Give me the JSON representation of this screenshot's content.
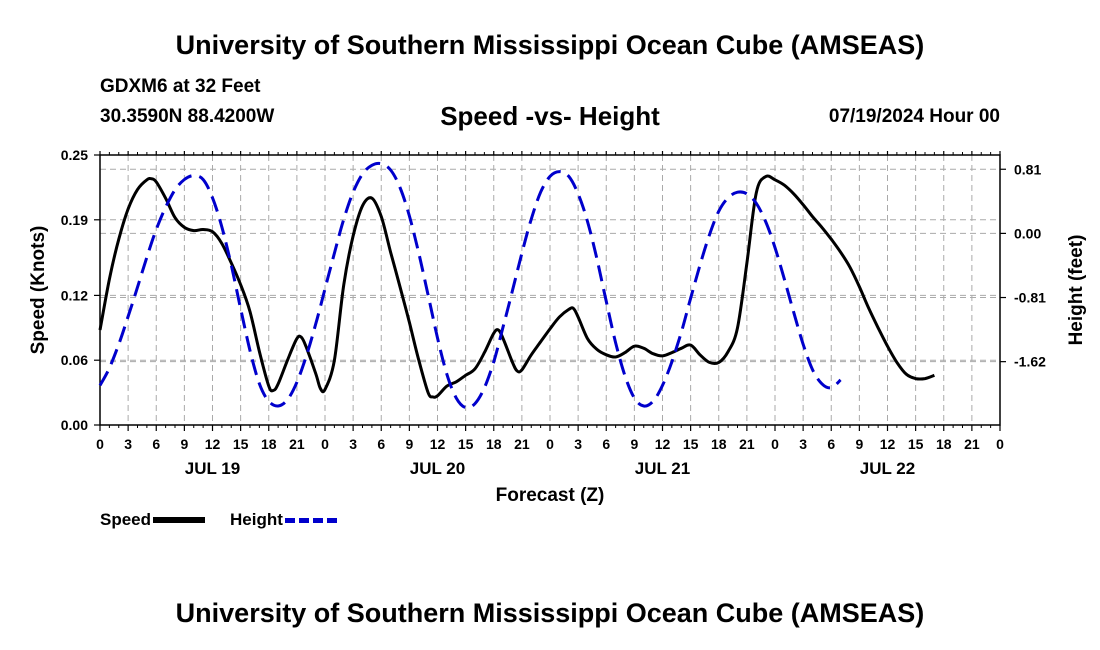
{
  "header": {
    "title": "University of Southern Mississippi Ocean Cube (AMSEAS)",
    "station": "GDXM6 at 32 Feet",
    "coordinates": "30.3590N  88.4200W",
    "subtitle": "Speed -vs- Height",
    "datetime": "07/19/2024 Hour 00"
  },
  "footer": {
    "title": "University of Southern Mississippi Ocean Cube (AMSEAS)"
  },
  "legend": {
    "speed_label": "Speed",
    "height_label": "Height"
  },
  "colors": {
    "speed": "#000000",
    "height": "#0000cc",
    "grid": "#aaaaaa"
  },
  "chart_data": {
    "type": "line",
    "xlabel": "Forecast (Z)",
    "ylabel_left": "Speed (Knots)",
    "ylabel_right": "Height (feet)",
    "xlim": [
      0,
      96
    ],
    "ylim_left": [
      0,
      0.25
    ],
    "ylim_right": [
      -2.42,
      0.99
    ],
    "grid": true,
    "x_ticks": [
      0,
      3,
      6,
      9,
      12,
      15,
      18,
      21,
      24,
      27,
      30,
      33,
      36,
      39,
      42,
      45,
      48,
      51,
      54,
      57,
      60,
      63,
      66,
      69,
      72,
      75,
      78,
      81,
      84,
      87,
      90,
      93,
      96
    ],
    "x_tick_labels": [
      "0",
      "3",
      "6",
      "9",
      "12",
      "15",
      "18",
      "21",
      "0",
      "3",
      "6",
      "9",
      "12",
      "15",
      "18",
      "21",
      "0",
      "3",
      "6",
      "9",
      "12",
      "15",
      "18",
      "21",
      "0",
      "3",
      "6",
      "9",
      "12",
      "15",
      "18",
      "21",
      "0"
    ],
    "date_labels": [
      {
        "label": "JUL 19",
        "x": 12
      },
      {
        "label": "JUL 20",
        "x": 36
      },
      {
        "label": "JUL 21",
        "x": 60
      },
      {
        "label": "JUL 22",
        "x": 84
      }
    ],
    "y_left_ticks": [
      0.0,
      0.06,
      0.12,
      0.19,
      0.25
    ],
    "y_left_tick_labels": [
      "0.00",
      "0.06",
      "0.12",
      "0.19",
      "0.25"
    ],
    "y_right_ticks": [
      0.81,
      0.0,
      -0.81,
      -1.62
    ],
    "y_right_tick_labels": [
      "0.81",
      "0.00",
      "-0.81",
      "-1.62"
    ],
    "series": [
      {
        "name": "Speed",
        "axis": "left",
        "style": "solid",
        "points": [
          [
            0,
            0.088
          ],
          [
            1,
            0.135
          ],
          [
            2,
            0.172
          ],
          [
            3,
            0.2
          ],
          [
            4,
            0.218
          ],
          [
            5,
            0.227
          ],
          [
            5.5,
            0.228
          ],
          [
            6,
            0.225
          ],
          [
            7,
            0.21
          ],
          [
            8,
            0.192
          ],
          [
            9,
            0.183
          ],
          [
            10,
            0.18
          ],
          [
            11,
            0.181
          ],
          [
            12,
            0.179
          ],
          [
            13,
            0.168
          ],
          [
            14,
            0.15
          ],
          [
            15,
            0.13
          ],
          [
            16,
            0.105
          ],
          [
            17,
            0.068
          ],
          [
            18,
            0.036
          ],
          [
            18.5,
            0.032
          ],
          [
            19,
            0.038
          ],
          [
            20,
            0.06
          ],
          [
            21,
            0.08
          ],
          [
            21.5,
            0.081
          ],
          [
            22,
            0.072
          ],
          [
            23,
            0.048
          ],
          [
            23.5,
            0.034
          ],
          [
            24,
            0.033
          ],
          [
            25,
            0.06
          ],
          [
            26,
            0.13
          ],
          [
            27,
            0.175
          ],
          [
            28,
            0.203
          ],
          [
            29,
            0.21
          ],
          [
            30,
            0.193
          ],
          [
            31,
            0.16
          ],
          [
            32,
            0.128
          ],
          [
            33,
            0.095
          ],
          [
            34,
            0.06
          ],
          [
            35,
            0.03
          ],
          [
            35.5,
            0.026
          ],
          [
            36,
            0.027
          ],
          [
            37,
            0.036
          ],
          [
            38,
            0.04
          ],
          [
            39,
            0.046
          ],
          [
            40,
            0.052
          ],
          [
            41,
            0.067
          ],
          [
            42,
            0.085
          ],
          [
            42.5,
            0.088
          ],
          [
            43,
            0.08
          ],
          [
            44,
            0.058
          ],
          [
            44.5,
            0.05
          ],
          [
            45,
            0.051
          ],
          [
            46,
            0.065
          ],
          [
            47,
            0.077
          ],
          [
            48,
            0.089
          ],
          [
            49,
            0.1
          ],
          [
            50,
            0.107
          ],
          [
            50.5,
            0.108
          ],
          [
            51,
            0.1
          ],
          [
            52,
            0.08
          ],
          [
            53,
            0.07
          ],
          [
            54,
            0.065
          ],
          [
            55,
            0.063
          ],
          [
            56,
            0.067
          ],
          [
            57,
            0.073
          ],
          [
            58,
            0.071
          ],
          [
            59,
            0.066
          ],
          [
            60,
            0.064
          ],
          [
            61,
            0.067
          ],
          [
            62,
            0.071
          ],
          [
            63,
            0.074
          ],
          [
            64,
            0.065
          ],
          [
            65,
            0.058
          ],
          [
            66,
            0.058
          ],
          [
            67,
            0.068
          ],
          [
            68,
            0.09
          ],
          [
            69,
            0.15
          ],
          [
            70,
            0.215
          ],
          [
            71,
            0.23
          ],
          [
            72,
            0.227
          ],
          [
            73,
            0.222
          ],
          [
            74,
            0.214
          ],
          [
            75,
            0.204
          ],
          [
            76,
            0.193
          ],
          [
            77,
            0.183
          ],
          [
            78,
            0.172
          ],
          [
            79,
            0.16
          ],
          [
            80,
            0.146
          ],
          [
            81,
            0.128
          ],
          [
            82,
            0.108
          ],
          [
            83,
            0.09
          ],
          [
            84,
            0.073
          ],
          [
            85,
            0.058
          ],
          [
            86,
            0.047
          ],
          [
            87,
            0.043
          ],
          [
            88,
            0.043
          ],
          [
            89,
            0.046
          ]
        ]
      },
      {
        "name": "Height",
        "axis": "right",
        "style": "dashed",
        "points": [
          [
            0,
            -1.92
          ],
          [
            1,
            -1.7
          ],
          [
            2,
            -1.4
          ],
          [
            3,
            -1.05
          ],
          [
            4,
            -0.68
          ],
          [
            5,
            -0.3
          ],
          [
            6,
            0.05
          ],
          [
            7,
            0.33
          ],
          [
            8,
            0.55
          ],
          [
            9,
            0.68
          ],
          [
            10,
            0.73
          ],
          [
            11,
            0.68
          ],
          [
            12,
            0.45
          ],
          [
            13,
            0.08
          ],
          [
            14,
            -0.4
          ],
          [
            15,
            -0.95
          ],
          [
            16,
            -1.48
          ],
          [
            17,
            -1.9
          ],
          [
            18,
            -2.12
          ],
          [
            19,
            -2.18
          ],
          [
            20,
            -2.1
          ],
          [
            21,
            -1.88
          ],
          [
            22,
            -1.55
          ],
          [
            23,
            -1.15
          ],
          [
            24,
            -0.7
          ],
          [
            25,
            -0.25
          ],
          [
            26,
            0.18
          ],
          [
            27,
            0.52
          ],
          [
            28,
            0.75
          ],
          [
            29,
            0.86
          ],
          [
            30,
            0.88
          ],
          [
            31,
            0.8
          ],
          [
            32,
            0.58
          ],
          [
            33,
            0.22
          ],
          [
            34,
            -0.25
          ],
          [
            35,
            -0.78
          ],
          [
            36,
            -1.32
          ],
          [
            37,
            -1.78
          ],
          [
            38,
            -2.08
          ],
          [
            39,
            -2.2
          ],
          [
            40,
            -2.15
          ],
          [
            41,
            -1.95
          ],
          [
            42,
            -1.62
          ],
          [
            43,
            -1.18
          ],
          [
            44,
            -0.72
          ],
          [
            45,
            -0.25
          ],
          [
            46,
            0.18
          ],
          [
            47,
            0.52
          ],
          [
            48,
            0.72
          ],
          [
            49,
            0.78
          ],
          [
            50,
            0.72
          ],
          [
            51,
            0.5
          ],
          [
            52,
            0.15
          ],
          [
            53,
            -0.32
          ],
          [
            54,
            -0.86
          ],
          [
            55,
            -1.38
          ],
          [
            56,
            -1.8
          ],
          [
            57,
            -2.08
          ],
          [
            58,
            -2.18
          ],
          [
            59,
            -2.12
          ],
          [
            60,
            -1.92
          ],
          [
            61,
            -1.62
          ],
          [
            62,
            -1.25
          ],
          [
            63,
            -0.82
          ],
          [
            64,
            -0.4
          ],
          [
            65,
            -0.02
          ],
          [
            66,
            0.28
          ],
          [
            67,
            0.45
          ],
          [
            68,
            0.52
          ],
          [
            69,
            0.5
          ],
          [
            70,
            0.38
          ],
          [
            71,
            0.15
          ],
          [
            72,
            -0.18
          ],
          [
            73,
            -0.58
          ],
          [
            74,
            -1.0
          ],
          [
            75,
            -1.4
          ],
          [
            76,
            -1.72
          ],
          [
            77,
            -1.9
          ],
          [
            78,
            -1.95
          ],
          [
            79,
            -1.85
          ]
        ]
      }
    ]
  }
}
